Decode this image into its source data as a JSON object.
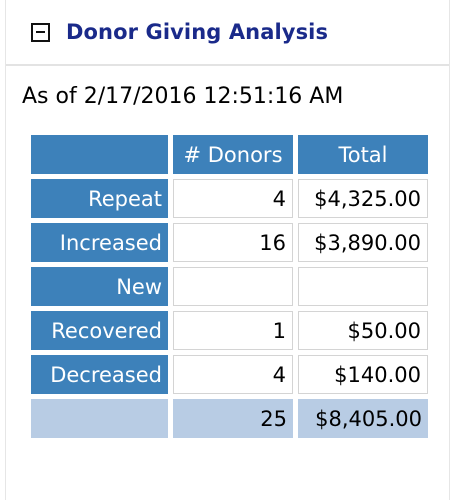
{
  "panel": {
    "title": "Donor Giving Analysis",
    "collapse_icon": "minus-square-icon",
    "as_of": "As of 2/17/2016 12:51:16 AM"
  },
  "table": {
    "headers": [
      "",
      "# Donors",
      "Total"
    ],
    "rows": [
      {
        "label": "Repeat",
        "donors": "4",
        "total": "$4,325.00"
      },
      {
        "label": "Increased",
        "donors": "16",
        "total": "$3,890.00"
      },
      {
        "label": "New",
        "donors": "",
        "total": ""
      },
      {
        "label": "Recovered",
        "donors": "1",
        "total": "$50.00"
      },
      {
        "label": "Decreased",
        "donors": "4",
        "total": "$140.00"
      }
    ],
    "totals": {
      "label": "",
      "donors": "25",
      "total": "$8,405.00"
    }
  },
  "colors": {
    "header_bg": "#3d81ba",
    "totals_bg": "#b8cce4",
    "title": "#1a2a8a"
  }
}
